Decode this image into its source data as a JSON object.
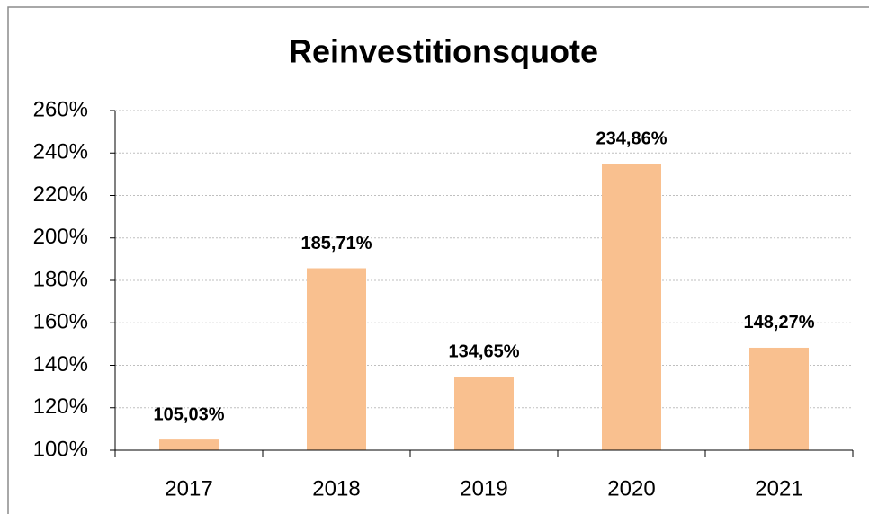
{
  "chart_data": {
    "type": "bar",
    "title": "Reinvestitionsquote",
    "categories": [
      "2017",
      "2018",
      "2019",
      "2020",
      "2021"
    ],
    "values": [
      105.03,
      185.71,
      134.65,
      234.86,
      148.27
    ],
    "value_labels": [
      "105,03%",
      "185,71%",
      "134,65%",
      "234,86%",
      "148,27%"
    ],
    "color": "#f9c08f",
    "ylim": [
      100,
      260
    ],
    "yticks": [
      {
        "value": 100,
        "label": "100%"
      },
      {
        "value": 120,
        "label": "120%"
      },
      {
        "value": 140,
        "label": "140%"
      },
      {
        "value": 160,
        "label": "160%"
      },
      {
        "value": 180,
        "label": "180%"
      },
      {
        "value": 200,
        "label": "200%"
      },
      {
        "value": 220,
        "label": "220%"
      },
      {
        "value": 240,
        "label": "240%"
      },
      {
        "value": 260,
        "label": "260%"
      }
    ],
    "grid": true
  }
}
